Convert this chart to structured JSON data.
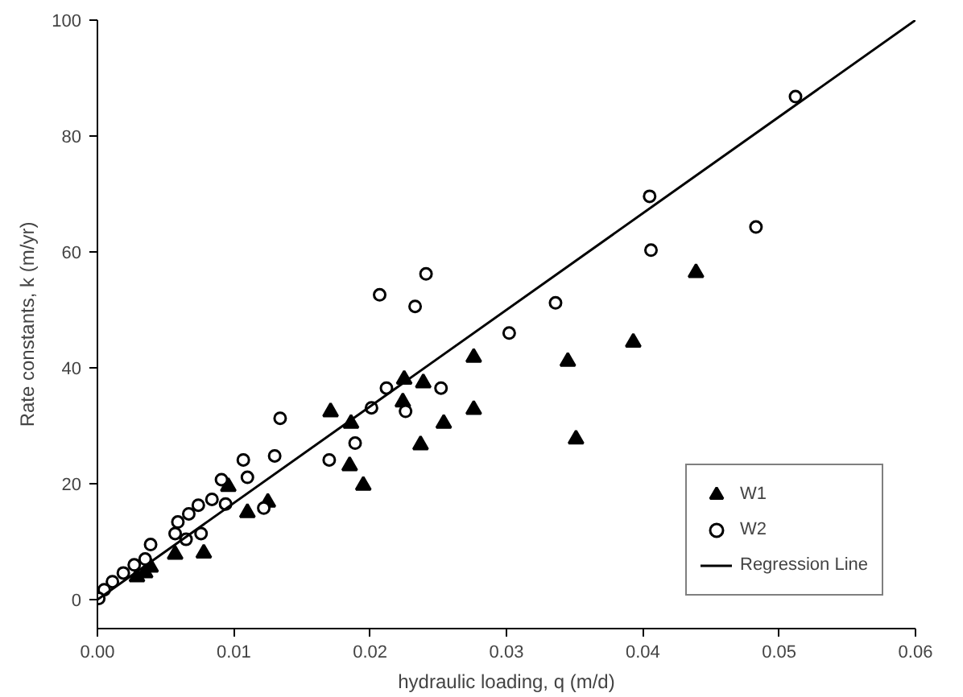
{
  "chart_data": {
    "type": "scatter",
    "xlabel": "hydraulic loading, q (m/d)",
    "ylabel": "Rate constants, k (m/yr)",
    "xlim": [
      0,
      0.06
    ],
    "ylim": [
      -5,
      100
    ],
    "xticks": [
      {
        "value": 0,
        "label": "0.00"
      },
      {
        "value": 0.01,
        "label": "0.01"
      },
      {
        "value": 0.02,
        "label": "0.02"
      },
      {
        "value": 0.03,
        "label": "0.03"
      },
      {
        "value": 0.04,
        "label": "0.04"
      },
      {
        "value": 0.05,
        "label": "0.05"
      },
      {
        "value": 0.06,
        "label": "0.06"
      }
    ],
    "yticks": [
      0,
      20,
      40,
      60,
      80,
      100
    ],
    "grid": false,
    "legend": "bottom right",
    "series": [
      {
        "name": "W1",
        "marker": "triangle",
        "color": "#000000",
        "x": [
          0.0276,
          0.0276,
          0.0254,
          0.0237,
          0.0239,
          0.0225,
          0.0224,
          0.0186,
          0.0171,
          0.0185,
          0.0195,
          0.0125,
          0.011,
          0.0096,
          0.0439,
          0.0393,
          0.0345,
          0.0351,
          0.0057,
          0.0078,
          0.0039,
          0.0035,
          0.0029
        ],
        "values": [
          41.8,
          32.8,
          30.4,
          26.7,
          37.4,
          38.0,
          34.1,
          30.4,
          32.4,
          23.1,
          19.7,
          16.8,
          15.0,
          19.5,
          56.4,
          44.4,
          41.1,
          27.7,
          7.8,
          8.0,
          5.6,
          4.6,
          3.9
        ]
      },
      {
        "name": "W2",
        "marker": "circle",
        "color": "#000000",
        "x": [
          0.0241,
          0.0207,
          0.0233,
          0.0302,
          0.0212,
          0.0252,
          0.0201,
          0.0226,
          0.0189,
          0.017,
          0.0134,
          0.013,
          0.0107,
          0.011,
          0.0091,
          0.0094,
          0.0122,
          0.0512,
          0.0405,
          0.0406,
          0.0483,
          0.0336,
          0.0084,
          0.0074,
          0.0067,
          0.0059,
          0.0076,
          0.0065,
          0.0057,
          0.0039,
          0.0035,
          0.0027,
          0.0019,
          0.0011,
          0.0005,
          0.0001
        ],
        "values": [
          56.2,
          52.6,
          50.6,
          46.0,
          36.5,
          36.5,
          33.1,
          32.5,
          27.0,
          24.1,
          31.3,
          24.8,
          24.1,
          21.1,
          20.7,
          16.5,
          15.8,
          86.8,
          69.6,
          60.3,
          64.3,
          51.2,
          17.3,
          16.3,
          14.8,
          13.4,
          11.4,
          10.4,
          11.4,
          9.5,
          7.0,
          6.0,
          4.6,
          3.1,
          1.7,
          0.2
        ]
      },
      {
        "name": "Regression Line",
        "type": "line",
        "color": "#000000",
        "line_style": "solid",
        "x": [
          0,
          0.06
        ],
        "values": [
          0,
          100
        ]
      }
    ]
  }
}
